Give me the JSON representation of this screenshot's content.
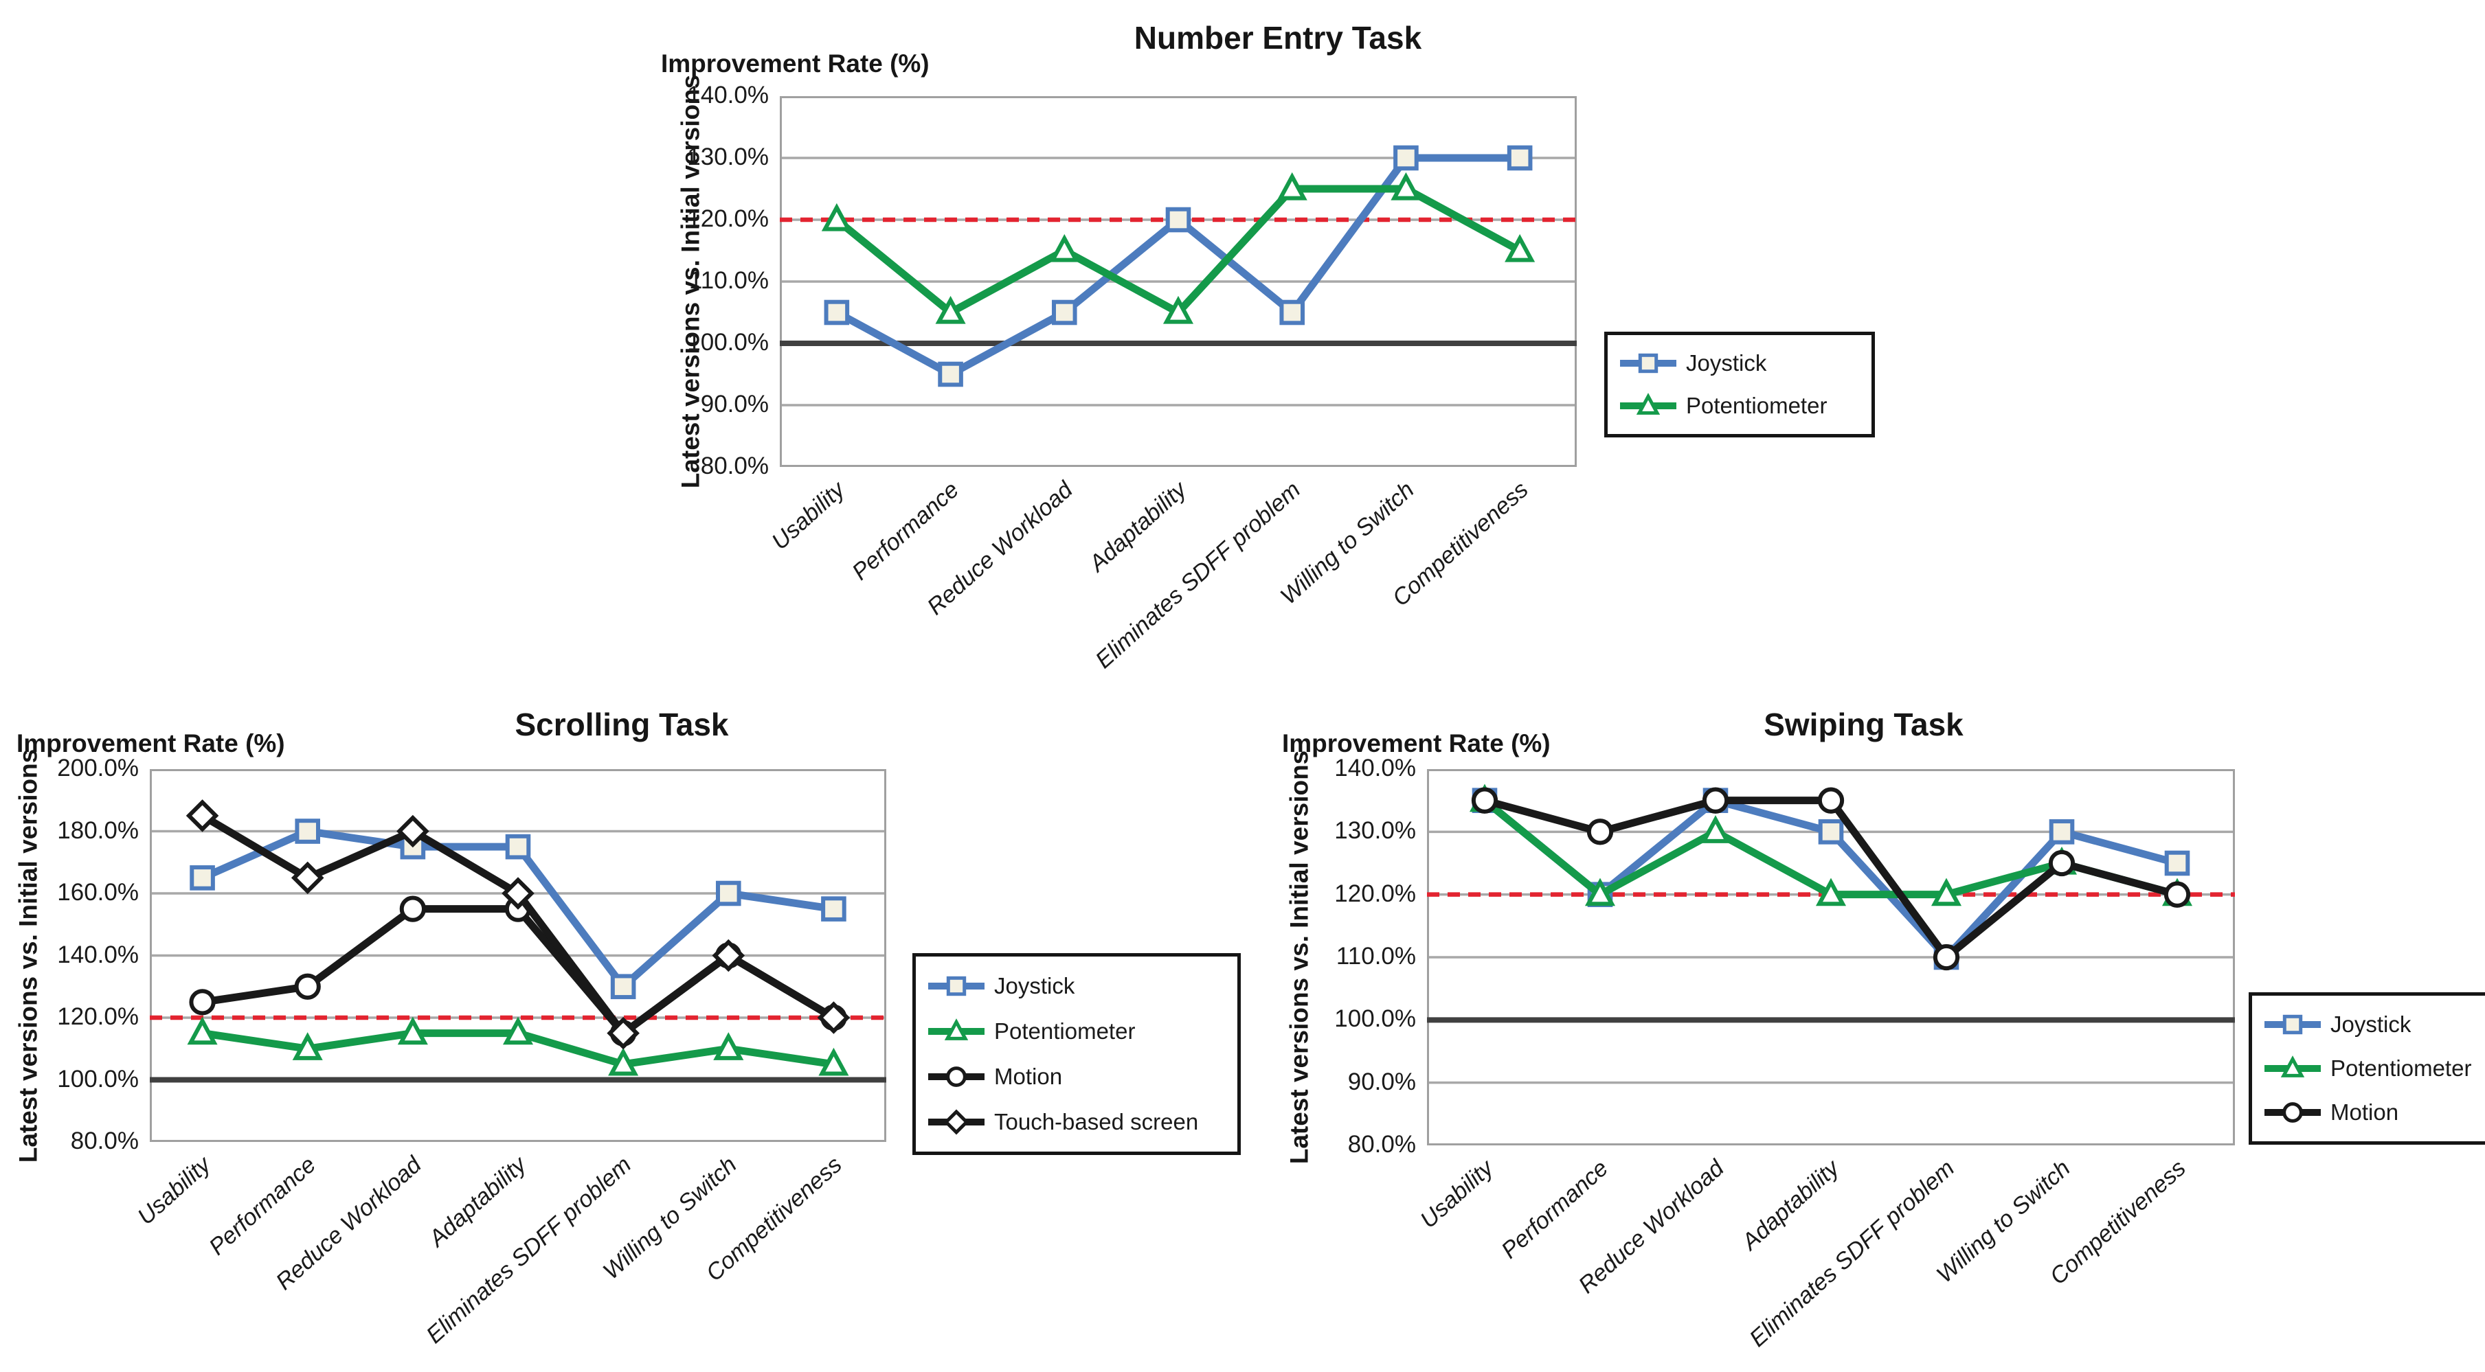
{
  "page": {
    "background": "#ffffff"
  },
  "styles": {
    "grid_color": "#a8a8a8",
    "plot_border_color": "#a0a0a0",
    "baseline_color": "#404040",
    "text_color": "#1a1a1a",
    "legend_border_color": "#151515",
    "series_blue": "#4d7cbe",
    "series_green": "#149a4a",
    "series_black": "#191919",
    "target_red": "#e32430"
  },
  "chart_data": [
    {
      "id": "number-entry-task",
      "type": "line",
      "title": "Number Entry Task",
      "axis_top_label": "Improvement Rate (%)",
      "ylabel": "Latest versions vs. Initial versions",
      "ylim": [
        80,
        140
      ],
      "grid": true,
      "legend_position": "right-middle",
      "baseline": {
        "value": 100
      },
      "target_line": {
        "value": 120,
        "style": "dashed",
        "color": "#e32430"
      },
      "yticks": [
        {
          "v": 140,
          "label": "140.0%"
        },
        {
          "v": 130,
          "label": "130.0%"
        },
        {
          "v": 120,
          "label": "120.0%"
        },
        {
          "v": 110,
          "label": "110.0%"
        },
        {
          "v": 100,
          "label": "100.0%"
        },
        {
          "v": 90,
          "label": "90.0%"
        },
        {
          "v": 80,
          "label": "80.0%"
        }
      ],
      "categories": [
        "Usability",
        "Performance",
        "Reduce Workload",
        "Adaptability",
        "Eliminates SDFF problem",
        "Willing to Switch",
        "Competitiveness"
      ],
      "series": [
        {
          "name": "Joystick",
          "color": "#4d7cbe",
          "marker": "square",
          "marker_fill": "#f4f1e3",
          "values": [
            105,
            95,
            105,
            120,
            105,
            130,
            130
          ]
        },
        {
          "name": "Potentiometer",
          "color": "#149a4a",
          "marker": "triangle",
          "marker_fill": "#ffffff",
          "values": [
            120,
            105,
            115,
            105,
            125,
            125,
            115
          ]
        }
      ]
    },
    {
      "id": "scrolling-task",
      "type": "line",
      "title": "Scrolling Task",
      "axis_top_label": "Improvement Rate (%)",
      "ylabel": "Latest versions vs. Initial versions",
      "ylim": [
        80,
        200
      ],
      "grid": true,
      "legend_position": "right-middle",
      "baseline": {
        "value": 100
      },
      "target_line": {
        "value": 120,
        "style": "dashed",
        "color": "#e32430"
      },
      "yticks": [
        {
          "v": 200,
          "label": "200.0%"
        },
        {
          "v": 180,
          "label": "180.0%"
        },
        {
          "v": 160,
          "label": "160.0%"
        },
        {
          "v": 140,
          "label": "140.0%"
        },
        {
          "v": 120,
          "label": "120.0%"
        },
        {
          "v": 100,
          "label": "100.0%"
        },
        {
          "v": 80,
          "label": "80.0%"
        }
      ],
      "categories": [
        "Usability",
        "Performance",
        "Reduce Workload",
        "Adaptability",
        "Eliminates SDFF problem",
        "Willing to Switch",
        "Competitiveness"
      ],
      "series": [
        {
          "name": "Joystick",
          "color": "#4d7cbe",
          "marker": "square",
          "marker_fill": "#f4f1e3",
          "values": [
            165,
            180,
            175,
            175,
            130,
            160,
            155
          ]
        },
        {
          "name": "Potentiometer",
          "color": "#149a4a",
          "marker": "triangle",
          "marker_fill": "#ffffff",
          "values": [
            115,
            110,
            115,
            115,
            105,
            110,
            105
          ]
        },
        {
          "name": "Motion",
          "color": "#191919",
          "marker": "circle",
          "marker_fill": "#ffffff",
          "values": [
            125,
            130,
            155,
            155,
            115,
            140,
            120
          ]
        },
        {
          "name": "Touch-based screen",
          "color": "#191919",
          "marker": "diamond",
          "marker_fill": "#ffffff",
          "values": [
            185,
            165,
            180,
            160,
            115,
            140,
            120
          ]
        }
      ]
    },
    {
      "id": "swiping-task",
      "type": "line",
      "title": "Swiping Task",
      "axis_top_label": "Improvement Rate (%)",
      "ylabel": "Latest versions vs. Initial versions",
      "ylim": [
        80,
        140
      ],
      "grid": true,
      "legend_position": "right-middle",
      "baseline": {
        "value": 100
      },
      "target_line": {
        "value": 120,
        "style": "dashed",
        "color": "#e32430"
      },
      "yticks": [
        {
          "v": 140,
          "label": "140.0%"
        },
        {
          "v": 130,
          "label": "130.0%"
        },
        {
          "v": 120,
          "label": "120.0%"
        },
        {
          "v": 110,
          "label": "110.0%"
        },
        {
          "v": 100,
          "label": "100.0%"
        },
        {
          "v": 90,
          "label": "90.0%"
        },
        {
          "v": 80,
          "label": "80.0%"
        }
      ],
      "categories": [
        "Usability",
        "Performance",
        "Reduce Workload",
        "Adaptability",
        "Eliminates SDFF problem",
        "Willing to Switch",
        "Competitiveness"
      ],
      "series": [
        {
          "name": "Joystick",
          "color": "#4d7cbe",
          "marker": "square",
          "marker_fill": "#f4f1e3",
          "values": [
            135,
            120,
            135,
            130,
            110,
            130,
            125
          ]
        },
        {
          "name": "Potentiometer",
          "color": "#149a4a",
          "marker": "triangle",
          "marker_fill": "#ffffff",
          "values": [
            135,
            120,
            130,
            120,
            120,
            125,
            120
          ]
        },
        {
          "name": "Motion",
          "color": "#191919",
          "marker": "circle",
          "marker_fill": "#ffffff",
          "values": [
            135,
            130,
            135,
            135,
            110,
            125,
            120
          ]
        }
      ]
    }
  ]
}
